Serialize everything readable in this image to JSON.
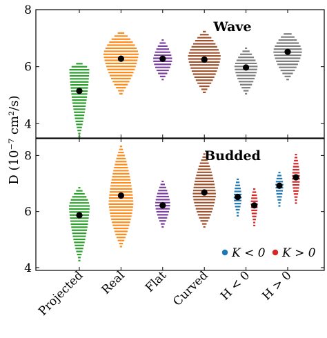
{
  "chart_data": {
    "type": "violin",
    "ylabel": "D (10⁻⁷ cm²/s)",
    "categories": [
      "Projected",
      "Real",
      "Flat",
      "Curved",
      "H < 0",
      "H > 0"
    ],
    "panels": [
      {
        "title": "Wave",
        "ylim": [
          3.5,
          8
        ],
        "yticks": [
          4,
          6,
          8
        ],
        "violins": [
          {
            "category": "Projected",
            "color": "#2ca02c",
            "mean": 5.15,
            "min": 3.55,
            "max": 6.15,
            "mode": 5.9,
            "width": 0.5
          },
          {
            "category": "Real",
            "color": "#ff8c1a",
            "mean": 6.28,
            "min": 5.05,
            "max": 7.25,
            "mode": 6.45,
            "width": 0.88
          },
          {
            "category": "Flat",
            "color": "#7b3fa0",
            "mean": 6.28,
            "min": 5.55,
            "max": 6.95,
            "mode": 6.25,
            "width": 0.48
          },
          {
            "category": "Curved",
            "color": "#a0522d",
            "mean": 6.25,
            "min": 5.1,
            "max": 7.25,
            "mode": 6.35,
            "width": 0.82
          },
          {
            "category": "H < 0",
            "color": "#7f7f7f",
            "mean": 5.97,
            "min": 5.05,
            "max": 6.65,
            "mode": 6.0,
            "width": 0.58
          },
          {
            "category": "H > 0",
            "color": "#7f7f7f",
            "mean": 6.52,
            "min": 5.55,
            "max": 7.25,
            "mode": 6.55,
            "width": 0.72
          }
        ]
      },
      {
        "title": "Budded",
        "ylim": [
          3.9,
          8.6
        ],
        "yticks": [
          4,
          6,
          8
        ],
        "violins": [
          {
            "category": "Projected",
            "color": "#2ca02c",
            "mean": 5.87,
            "min": 4.25,
            "max": 6.85,
            "mode": 6.2,
            "width": 0.52
          },
          {
            "category": "Real",
            "color": "#ff8c1a",
            "mean": 6.57,
            "min": 4.75,
            "max": 8.35,
            "mode": 6.3,
            "width": 0.62
          },
          {
            "category": "Flat",
            "color": "#7b3fa0",
            "mean": 6.22,
            "min": 5.45,
            "max": 7.1,
            "mode": 6.25,
            "width": 0.38
          },
          {
            "category": "Curved",
            "color": "#a0522d",
            "mean": 6.68,
            "min": 5.45,
            "max": 8.05,
            "mode": 6.6,
            "width": 0.58
          },
          {
            "category": "H < 0",
            "group": "K < 0",
            "color": "#1f77b4",
            "mean": 6.52,
            "min": 5.85,
            "max": 7.25,
            "mode": 6.5,
            "width": 0.2
          },
          {
            "category": "H < 0",
            "group": "K > 0",
            "color": "#d62728",
            "mean": 6.22,
            "min": 5.5,
            "max": 6.9,
            "mode": 6.3,
            "width": 0.18
          },
          {
            "category": "H > 0",
            "group": "K < 0",
            "color": "#1f77b4",
            "mean": 6.92,
            "min": 6.2,
            "max": 7.45,
            "mode": 6.95,
            "width": 0.2
          },
          {
            "category": "H > 0",
            "group": "K > 0",
            "color": "#d62728",
            "mean": 7.22,
            "min": 6.3,
            "max": 8.1,
            "mode": 7.2,
            "width": 0.2
          }
        ]
      }
    ],
    "legend": {
      "position": "bottom-right",
      "items": [
        {
          "label": "K < 0",
          "color": "#1f77b4"
        },
        {
          "label": "K > 0",
          "color": "#d62728"
        }
      ]
    }
  }
}
